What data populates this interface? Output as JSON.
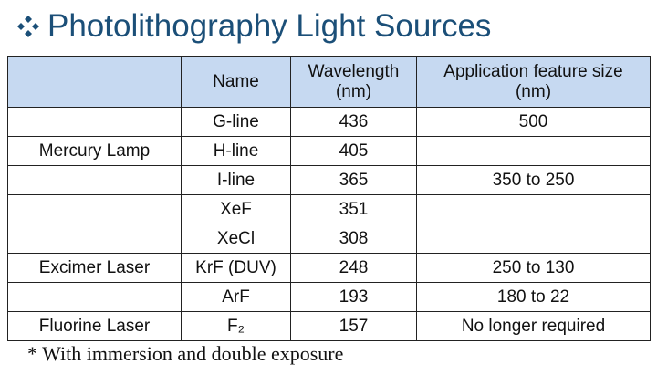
{
  "title": "Photolithography Light Sources",
  "table": {
    "header": [
      null,
      "Name",
      "Wavelength\n(nm)",
      "Application  feature size\n(nm)"
    ],
    "rows": [
      [
        null,
        "G-line",
        436,
        "500"
      ],
      [
        "Mercury Lamp",
        "H-line",
        405,
        null
      ],
      [
        null,
        "I-line",
        365,
        "350 to 250"
      ],
      [
        null,
        "XeF",
        351,
        null
      ],
      [
        null,
        "XeCl",
        308,
        null
      ],
      [
        "Excimer Laser",
        "KrF (DUV)",
        248,
        "250 to 130"
      ],
      [
        null,
        "ArF",
        193,
        "180 to 22"
      ],
      [
        "Fluorine Laser",
        "F₂",
        157,
        "No longer required"
      ]
    ]
  },
  "footnote": "* With immersion and double exposure"
}
